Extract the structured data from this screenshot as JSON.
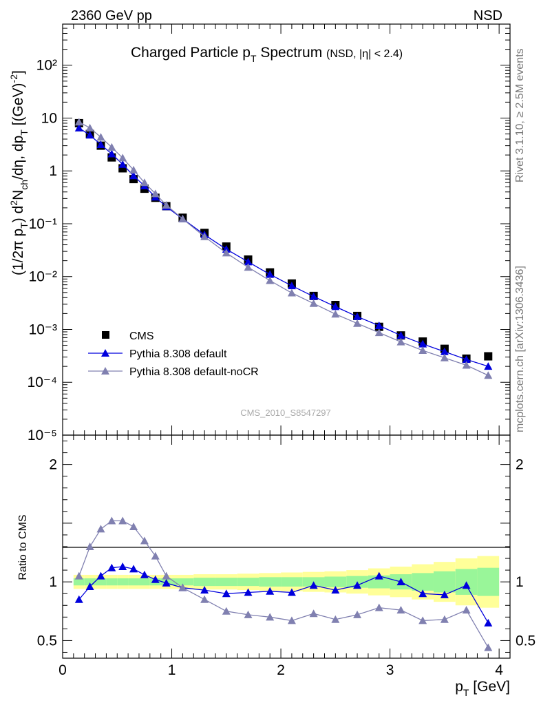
{
  "header": {
    "energy_label": "2360 GeV pp",
    "process_label": "NSD"
  },
  "side": {
    "rivet": "Rivet 3.1.10, ≥ 2.5M events",
    "mcplots": "mcplots.cern.ch [arXiv:1306.3436]"
  },
  "analysis_id": "CMS_2010_S8547297",
  "chart_data": [
    {
      "type": "scatter",
      "panel": "main",
      "title": "Charged Particle pT Spectrum (NSD, |η| < 2.4)",
      "xlabel": "pT [GeV]",
      "ylabel": "(1/2π pT) d²Nch/dη, dpT [(GeV)⁻²]",
      "xlim": [
        0,
        4.1
      ],
      "ylim": [
        1e-05,
        600
      ],
      "yscale": "log",
      "ytick_labels": [
        "10⁻⁵",
        "10⁻⁴",
        "10⁻³",
        "10⁻²",
        "10⁻¹",
        "1",
        "10",
        "10²"
      ],
      "legend_position": "lower-left",
      "x": [
        0.15,
        0.25,
        0.35,
        0.45,
        0.55,
        0.65,
        0.75,
        0.85,
        0.95,
        1.1,
        1.3,
        1.5,
        1.7,
        1.9,
        2.1,
        2.3,
        2.5,
        2.7,
        2.9,
        3.1,
        3.3,
        3.5,
        3.7,
        3.9
      ],
      "series": [
        {
          "name": "CMS",
          "color": "#000000",
          "marker": "square",
          "values": [
            8.0,
            5.0,
            3.0,
            1.8,
            1.12,
            0.7,
            0.46,
            0.31,
            0.215,
            0.13,
            0.067,
            0.037,
            0.021,
            0.012,
            0.0074,
            0.0043,
            0.0029,
            0.0018,
            0.00112,
            0.00077,
            0.00059,
            0.00043,
            0.00028,
            0.00031
          ]
        },
        {
          "name": "Pythia 8.308 default",
          "color": "#0000dd",
          "marker": "triangle",
          "values": [
            6.5,
            4.75,
            3.15,
            2.1,
            1.33,
            0.81,
            0.52,
            0.32,
            0.21,
            0.124,
            0.062,
            0.033,
            0.019,
            0.011,
            0.0067,
            0.0042,
            0.0027,
            0.00175,
            0.00118,
            0.00077,
            0.00053,
            0.00038,
            0.00027,
            0.0002
          ]
        },
        {
          "name": "Pythia 8.308 default-noCR",
          "color": "#8080b0",
          "marker": "triangle",
          "values": [
            8.4,
            6.5,
            4.35,
            2.8,
            1.76,
            1.04,
            0.6,
            0.37,
            0.225,
            0.124,
            0.057,
            0.028,
            0.015,
            0.0084,
            0.0049,
            0.0031,
            0.00195,
            0.0013,
            0.00087,
            0.00058,
            0.0004,
            0.00029,
            0.00021,
            0.000135
          ]
        }
      ]
    },
    {
      "type": "line",
      "panel": "ratio",
      "xlabel": "pT [GeV]",
      "ylabel": "Ratio to CMS",
      "xlim": [
        0,
        4.1
      ],
      "ylim": [
        0.35,
        2.25
      ],
      "xtick_labels": [
        "0",
        "1",
        "2",
        "3",
        "4"
      ],
      "ytick_labels": [
        "0.5",
        "1",
        "2"
      ],
      "x": [
        0.15,
        0.25,
        0.35,
        0.45,
        0.55,
        0.65,
        0.75,
        0.85,
        0.95,
        1.1,
        1.3,
        1.5,
        1.7,
        1.9,
        2.1,
        2.3,
        2.5,
        2.7,
        2.9,
        3.1,
        3.3,
        3.5,
        3.7,
        3.9
      ],
      "uncertainty_bands": {
        "bin_edges": [
          0.1,
          0.2,
          0.3,
          0.4,
          0.5,
          0.6,
          0.7,
          0.8,
          0.9,
          1.0,
          1.2,
          1.4,
          1.6,
          1.8,
          2.0,
          2.2,
          2.4,
          2.6,
          2.8,
          3.0,
          3.2,
          3.4,
          3.6,
          3.8,
          4.0
        ],
        "inner_color": "#99f699",
        "outer_color": "#ffff99",
        "inner": [
          0.03,
          0.03,
          0.03,
          0.03,
          0.03,
          0.03,
          0.03,
          0.03,
          0.03,
          0.03,
          0.035,
          0.035,
          0.035,
          0.04,
          0.04,
          0.04,
          0.045,
          0.05,
          0.055,
          0.065,
          0.075,
          0.09,
          0.11,
          0.12
        ],
        "outer": [
          0.06,
          0.06,
          0.06,
          0.06,
          0.06,
          0.06,
          0.06,
          0.06,
          0.06,
          0.06,
          0.065,
          0.065,
          0.07,
          0.075,
          0.08,
          0.085,
          0.09,
          0.1,
          0.115,
          0.13,
          0.15,
          0.17,
          0.2,
          0.22
        ]
      },
      "series": [
        {
          "name": "Pythia 8.308 default",
          "color": "#0000dd",
          "marker": "triangle",
          "values": [
            0.85,
            0.96,
            1.05,
            1.12,
            1.13,
            1.11,
            1.06,
            1.02,
            0.99,
            0.95,
            0.93,
            0.9,
            0.91,
            0.92,
            0.91,
            0.97,
            0.93,
            0.97,
            1.05,
            1.0,
            0.9,
            0.89,
            0.97,
            0.65
          ]
        },
        {
          "name": "Pythia 8.308 default-noCR",
          "color": "#8080b0",
          "marker": "triangle",
          "values": [
            1.05,
            1.3,
            1.45,
            1.52,
            1.52,
            1.47,
            1.35,
            1.22,
            1.05,
            0.95,
            0.85,
            0.75,
            0.72,
            0.7,
            0.67,
            0.73,
            0.68,
            0.72,
            0.78,
            0.76,
            0.67,
            0.68,
            0.76,
            0.44
          ]
        }
      ]
    }
  ]
}
